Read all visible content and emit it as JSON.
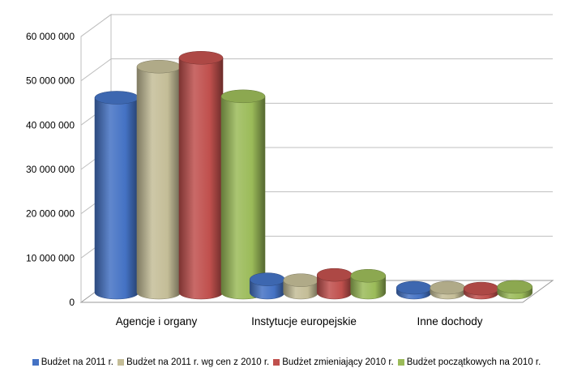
{
  "chart_data": {
    "type": "bar",
    "categories": [
      "Agencje i organy",
      "Instytucje europejskie",
      "Inne dochody"
    ],
    "series": [
      {
        "name": "Budżet na 2011 r.",
        "color": "#4472c4",
        "values": [
          44000000,
          3000000,
          1100000
        ]
      },
      {
        "name": "Budżet na 2011 r. wg cen z 2010 r.",
        "color": "#c4bd97",
        "values": [
          51000000,
          2800000,
          1100000
        ]
      },
      {
        "name": "Budżet zmieniający 2010 r.",
        "color": "#c0504d",
        "values": [
          53000000,
          4000000,
          900000
        ]
      },
      {
        "name": "Budżet początkowych na 2010 r.",
        "color": "#9bbb59",
        "values": [
          44300000,
          3800000,
          1300000
        ]
      }
    ],
    "ylim": [
      0,
      60000000
    ],
    "yticks": [
      0,
      10000000,
      20000000,
      30000000,
      40000000,
      50000000,
      60000000
    ],
    "ytick_labels": [
      "0",
      "10 000 000",
      "20 000 000",
      "30 000 000",
      "40 000 000",
      "50 000 000",
      "60 000 000"
    ],
    "grid": true,
    "legend_position": "bottom"
  }
}
